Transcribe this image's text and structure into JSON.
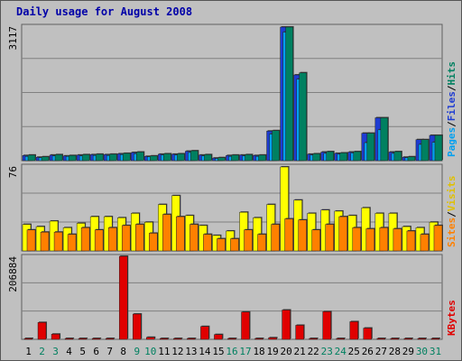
{
  "chart_data": {
    "type": "bar",
    "title": "Daily usage for August 2008",
    "categories": [
      "1",
      "2",
      "3",
      "4",
      "5",
      "6",
      "7",
      "8",
      "9",
      "10",
      "11",
      "12",
      "13",
      "14",
      "15",
      "16",
      "17",
      "18",
      "19",
      "20",
      "21",
      "22",
      "23",
      "24",
      "25",
      "26",
      "27",
      "28",
      "29",
      "30",
      "31"
    ],
    "weekend_days": [
      "2",
      "3",
      "9",
      "10",
      "16",
      "17",
      "23",
      "24",
      "30",
      "31"
    ],
    "panels": [
      {
        "name": "pages-files-hits",
        "max_label": "3117",
        "ymax": 3117,
        "legend": [
          "Pages",
          "/",
          "Files",
          "/",
          "Hits"
        ],
        "series": [
          {
            "name": "Pages",
            "color": "#1e3cd2",
            "values": [
              120,
              80,
              130,
              110,
              130,
              140,
              140,
              160,
              190,
              100,
              150,
              150,
              220,
              130,
              60,
              120,
              130,
              120,
              690,
              3117,
              2000,
              150,
              200,
              170,
              200,
              640,
              1000,
              200,
              80,
              490,
              590
            ]
          },
          {
            "name": "Files",
            "color": "#00a0f0",
            "values": [
              100,
              70,
              110,
              100,
              110,
              120,
              120,
              140,
              160,
              90,
              130,
              130,
              190,
              110,
              50,
              100,
              110,
              100,
              620,
              3000,
              1900,
              130,
              170,
              150,
              180,
              420,
              720,
              170,
              70,
              380,
              430
            ]
          },
          {
            "name": "Hits",
            "color": "#008060",
            "values": [
              130,
              90,
              140,
              120,
              140,
              150,
              150,
              170,
              200,
              110,
              160,
              160,
              230,
              140,
              70,
              130,
              140,
              130,
              700,
              3117,
              2050,
              160,
              210,
              180,
              210,
              640,
              1000,
              210,
              90,
              490,
              590
            ]
          }
        ]
      },
      {
        "name": "sites-visits",
        "max_label": "76",
        "ymax": 76,
        "legend": [
          "Sites",
          "/",
          "Visits"
        ],
        "series": [
          {
            "name": "Visits",
            "color": "#ffff00",
            "values": [
              24,
              22,
              27,
              21,
              25,
              31,
              31,
              30,
              34,
              26,
              42,
              50,
              32,
              23,
              14,
              18,
              35,
              30,
              42,
              76,
              46,
              34,
              37,
              36,
              32,
              39,
              34,
              34,
              22,
              21,
              26
            ]
          },
          {
            "name": "Sites",
            "color": "#ff8000",
            "values": [
              19,
              17,
              17,
              15,
              21,
              19,
              21,
              23,
              24,
              16,
              33,
              31,
              24,
              15,
              11,
              11,
              19,
              15,
              24,
              29,
              28,
              19,
              24,
              31,
              21,
              20,
              21,
              20,
              18,
              15,
              23
            ]
          }
        ]
      },
      {
        "name": "kbytes",
        "max_label": "206884",
        "ymax": 206884,
        "legend": [
          "KBytes"
        ],
        "series": [
          {
            "name": "KBytes",
            "color": "#e00000",
            "values": [
              0,
              42000,
              13000,
              0,
              0,
              0,
              0,
              206884,
              63000,
              5000,
              0,
              0,
              0,
              32000,
              12000,
              0,
              68000,
              0,
              4000,
              73000,
              35000,
              0,
              69000,
              0,
              44000,
              28000,
              0,
              0,
              0,
              0,
              0
            ]
          }
        ]
      }
    ],
    "grid": "horizontal"
  }
}
